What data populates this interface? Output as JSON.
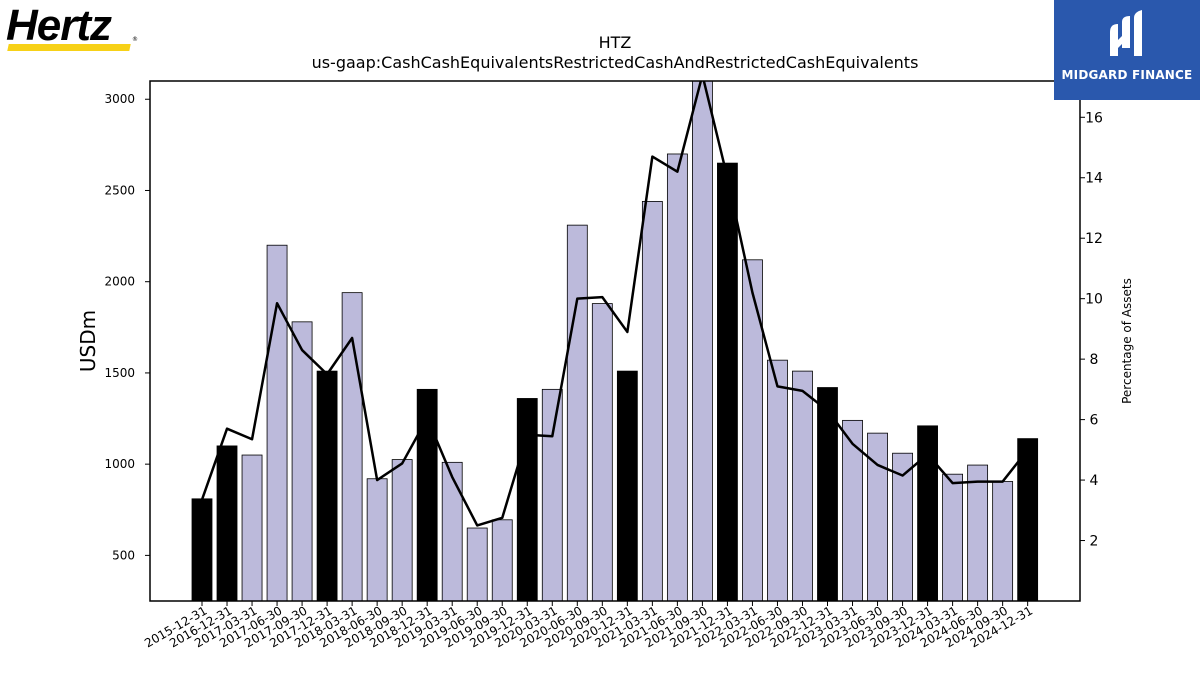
{
  "header": {
    "logo_left_text": "Hertz",
    "logo_right_text": "MIDGARD FINANCE"
  },
  "colors": {
    "bar_light": "#bcbadb",
    "bar_dark": "#000000",
    "line": "#000000",
    "logo_left_stripe": "#f7d117",
    "logo_right_bg": "#2a58ad"
  },
  "chart_data": {
    "type": "bar",
    "title": "HTZ",
    "subtitle": "us-gaap:CashCashEquivalentsRestrictedCashAndRestrictedCashEquivalents",
    "ylabel": "USDm",
    "y2label": "Percentage of Assets",
    "ylim": [
      250,
      3100
    ],
    "y_ticks": [
      500,
      1000,
      1500,
      2000,
      2500,
      3000
    ],
    "y2lim": [
      0,
      17.2
    ],
    "y2_ticks": [
      2,
      4,
      6,
      8,
      10,
      12,
      14,
      16
    ],
    "categories": [
      "2015-12-31",
      "2016-12-31",
      "2017-03-31",
      "2017-06-30",
      "2017-09-30",
      "2017-12-31",
      "2018-03-31",
      "2018-06-30",
      "2018-09-30",
      "2018-12-31",
      "2019-03-31",
      "2019-06-30",
      "2019-09-30",
      "2019-12-31",
      "2020-03-31",
      "2020-06-30",
      "2020-09-30",
      "2020-12-31",
      "2021-03-31",
      "2021-06-30",
      "2021-09-30",
      "2021-12-31",
      "2022-03-31",
      "2022-06-30",
      "2022-09-30",
      "2022-12-31",
      "2023-03-31",
      "2023-06-30",
      "2023-09-30",
      "2023-12-31",
      "2024-03-31",
      "2024-06-30",
      "2024-09-30",
      "2024-12-31"
    ],
    "series": [
      {
        "kind": "bar",
        "axis": "left",
        "values": [
          810,
          1100,
          1050,
          2200,
          1780,
          1510,
          1940,
          920,
          1025,
          1410,
          1010,
          650,
          695,
          1360,
          1410,
          2310,
          1880,
          1510,
          2440,
          2700,
          3160,
          2650,
          2120,
          1570,
          1510,
          1420,
          1240,
          1170,
          1060,
          1210,
          945,
          995,
          905,
          1140
        ],
        "year_end": [
          true,
          true,
          false,
          false,
          false,
          true,
          false,
          false,
          false,
          true,
          false,
          false,
          false,
          true,
          false,
          false,
          false,
          true,
          false,
          false,
          false,
          true,
          false,
          false,
          false,
          true,
          false,
          false,
          false,
          true,
          false,
          false,
          false,
          true
        ]
      },
      {
        "kind": "line",
        "axis": "right",
        "values": [
          3.35,
          5.7,
          5.35,
          9.85,
          8.3,
          7.5,
          8.7,
          4.0,
          4.55,
          6.05,
          4.1,
          2.5,
          2.75,
          5.5,
          5.45,
          10.0,
          10.05,
          8.9,
          14.7,
          14.2,
          17.4,
          14.0,
          10.2,
          7.1,
          6.95,
          6.3,
          5.2,
          4.5,
          4.15,
          4.85,
          3.9,
          3.95,
          3.95,
          5.0
        ]
      }
    ]
  }
}
